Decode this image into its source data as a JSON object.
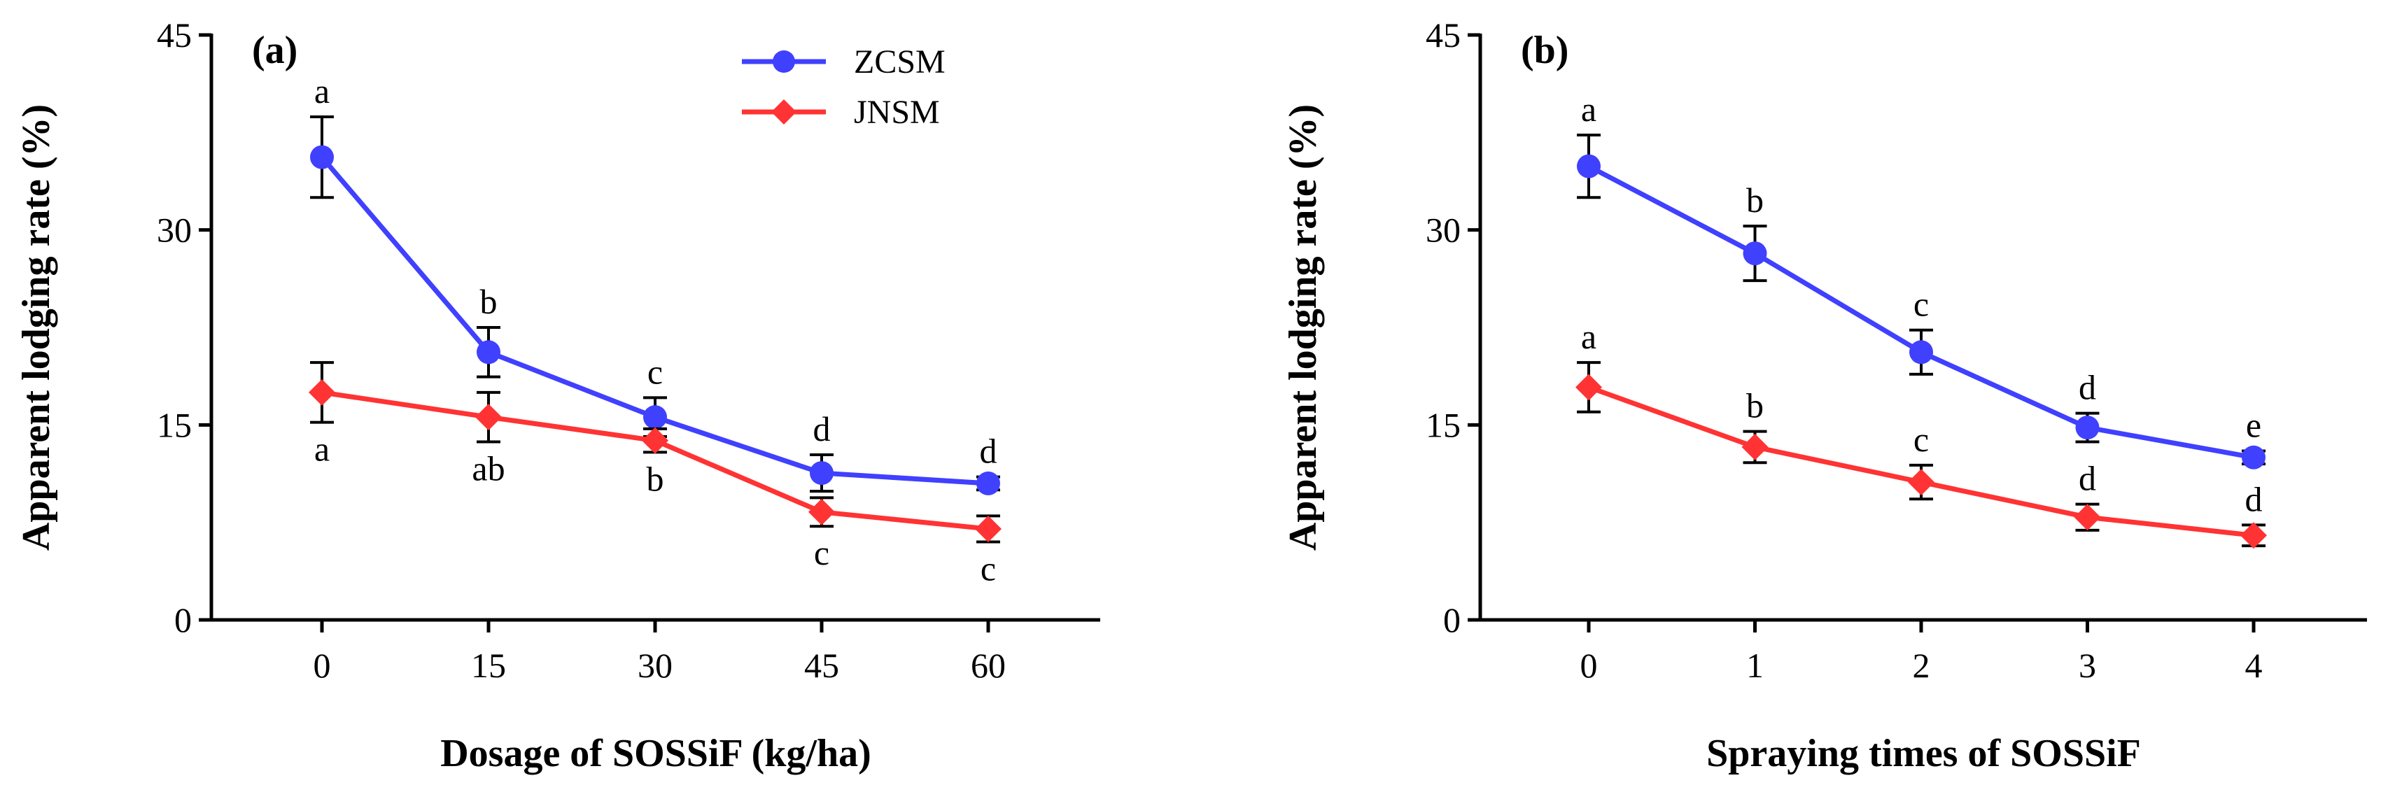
{
  "chart_data": [
    {
      "type": "line",
      "panel_label": "(a)",
      "xlabel": "Dosage of SOSSiF (kg/ha)",
      "ylabel": "Apparent lodging rate (%)",
      "categories": [
        "0",
        "15",
        "30",
        "45",
        "60"
      ],
      "ylim": [
        0,
        45
      ],
      "yticks": [
        "0",
        "15",
        "30",
        "45"
      ],
      "legend": {
        "placement": "top-center",
        "entries": [
          "ZCSM",
          "JNSM"
        ]
      },
      "series": [
        {
          "name": "ZCSM",
          "color": "#4040ff",
          "marker": "circle",
          "values": [
            35.6,
            20.6,
            15.6,
            11.3,
            10.5
          ],
          "errors": [
            3.1,
            1.9,
            1.5,
            1.4,
            0.5
          ],
          "sig": [
            "a",
            "b",
            "c",
            "d",
            "d"
          ],
          "sig_position": "above"
        },
        {
          "name": "JNSM",
          "color": "#ff3333",
          "marker": "diamond",
          "values": [
            17.5,
            15.6,
            13.8,
            8.3,
            7.0
          ],
          "errors": [
            2.3,
            1.9,
            0.9,
            1.1,
            1.0
          ],
          "sig": [
            "a",
            "ab",
            "b",
            "c",
            "c"
          ],
          "sig_position": "below"
        }
      ]
    },
    {
      "type": "line",
      "panel_label": "(b)",
      "xlabel": "Spraying times of SOSSiF",
      "ylabel": "Apparent lodging rate (%)",
      "categories": [
        "0",
        "1",
        "2",
        "3",
        "4"
      ],
      "ylim": [
        0,
        45
      ],
      "yticks": [
        "0",
        "15",
        "30",
        "45"
      ],
      "series": [
        {
          "name": "ZCSM",
          "color": "#4040ff",
          "marker": "circle",
          "values": [
            34.9,
            28.2,
            20.6,
            14.8,
            12.5
          ],
          "errors": [
            2.4,
            2.1,
            1.7,
            1.1,
            0.5
          ],
          "sig": [
            "a",
            "b",
            "c",
            "d",
            "e"
          ],
          "sig_position": "above"
        },
        {
          "name": "JNSM",
          "color": "#ff3333",
          "marker": "diamond",
          "values": [
            17.9,
            13.3,
            10.6,
            7.9,
            6.5
          ],
          "errors": [
            1.9,
            1.2,
            1.3,
            1.0,
            0.8
          ],
          "sig": [
            "a",
            "b",
            "c",
            "d",
            "d"
          ],
          "sig_position": "above"
        }
      ]
    }
  ]
}
